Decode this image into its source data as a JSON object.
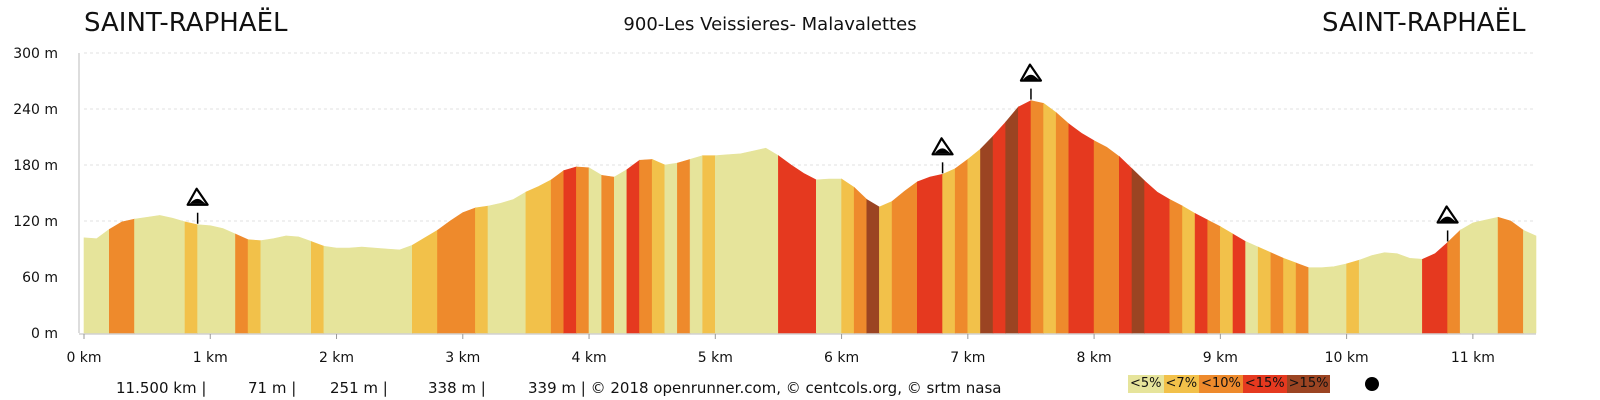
{
  "header": {
    "start_label": "SAINT-RAPHAËL",
    "end_label": "SAINT-RAPHAËL",
    "title": "900-Les Veissieres- Malavalettes"
  },
  "stats": {
    "distance": "11.500 km |",
    "min_elevation": "71 m |",
    "max_elevation": "251 m |",
    "ascent": "338 m |",
    "descent_credits": "339 m | © 2018 openrunner.com, © centcols.org, © srtm nasa"
  },
  "legend": [
    {
      "label": "<5%",
      "color": "#e6e49b"
    },
    {
      "label": "<7%",
      "color": "#f2c14a"
    },
    {
      "label": "<10%",
      "color": "#ee8a2c"
    },
    {
      "label": "<15%",
      "color": "#e5391f"
    },
    {
      "label": ">15%",
      "color": "#9b4422"
    }
  ],
  "chart_data": {
    "type": "area",
    "title": "900-Les Veissieres- Malavalettes",
    "xlabel": "",
    "ylabel": "",
    "x_unit": "km",
    "y_unit": "m",
    "xlim": [
      0,
      11.5
    ],
    "ylim": [
      0,
      300
    ],
    "x_ticks": [
      "0 km",
      "1 km",
      "2 km",
      "3 km",
      "4 km",
      "5 km",
      "6 km",
      "7 km",
      "8 km",
      "9 km",
      "10 km",
      "11 km"
    ],
    "y_ticks": [
      "0 m",
      "60 m",
      "120 m",
      "180 m",
      "240 m",
      "300 m"
    ],
    "grid": true,
    "profile": [
      {
        "x": 0.0,
        "y": 102
      },
      {
        "x": 0.1,
        "y": 101
      },
      {
        "x": 0.2,
        "y": 111
      },
      {
        "x": 0.3,
        "y": 119
      },
      {
        "x": 0.4,
        "y": 122
      },
      {
        "x": 0.5,
        "y": 124
      },
      {
        "x": 0.6,
        "y": 126
      },
      {
        "x": 0.7,
        "y": 123
      },
      {
        "x": 0.8,
        "y": 119
      },
      {
        "x": 0.9,
        "y": 116
      },
      {
        "x": 1.0,
        "y": 115
      },
      {
        "x": 1.1,
        "y": 112
      },
      {
        "x": 1.2,
        "y": 106
      },
      {
        "x": 1.3,
        "y": 100
      },
      {
        "x": 1.4,
        "y": 99
      },
      {
        "x": 1.5,
        "y": 101
      },
      {
        "x": 1.6,
        "y": 104
      },
      {
        "x": 1.7,
        "y": 103
      },
      {
        "x": 1.8,
        "y": 98
      },
      {
        "x": 1.9,
        "y": 93
      },
      {
        "x": 2.0,
        "y": 91
      },
      {
        "x": 2.1,
        "y": 91
      },
      {
        "x": 2.2,
        "y": 92
      },
      {
        "x": 2.3,
        "y": 91
      },
      {
        "x": 2.4,
        "y": 90
      },
      {
        "x": 2.5,
        "y": 89
      },
      {
        "x": 2.6,
        "y": 94
      },
      {
        "x": 2.7,
        "y": 102
      },
      {
        "x": 2.8,
        "y": 110
      },
      {
        "x": 2.9,
        "y": 120
      },
      {
        "x": 3.0,
        "y": 129
      },
      {
        "x": 3.1,
        "y": 134
      },
      {
        "x": 3.2,
        "y": 136
      },
      {
        "x": 3.3,
        "y": 139
      },
      {
        "x": 3.4,
        "y": 143
      },
      {
        "x": 3.5,
        "y": 151
      },
      {
        "x": 3.6,
        "y": 157
      },
      {
        "x": 3.7,
        "y": 164
      },
      {
        "x": 3.8,
        "y": 174
      },
      {
        "x": 3.9,
        "y": 178
      },
      {
        "x": 4.0,
        "y": 177
      },
      {
        "x": 4.1,
        "y": 169
      },
      {
        "x": 4.2,
        "y": 167
      },
      {
        "x": 4.3,
        "y": 175
      },
      {
        "x": 4.4,
        "y": 185
      },
      {
        "x": 4.5,
        "y": 186
      },
      {
        "x": 4.6,
        "y": 180
      },
      {
        "x": 4.7,
        "y": 182
      },
      {
        "x": 4.8,
        "y": 186
      },
      {
        "x": 4.9,
        "y": 190
      },
      {
        "x": 5.0,
        "y": 190
      },
      {
        "x": 5.1,
        "y": 191
      },
      {
        "x": 5.2,
        "y": 192
      },
      {
        "x": 5.3,
        "y": 195
      },
      {
        "x": 5.4,
        "y": 198
      },
      {
        "x": 5.5,
        "y": 190
      },
      {
        "x": 5.6,
        "y": 180
      },
      {
        "x": 5.7,
        "y": 171
      },
      {
        "x": 5.8,
        "y": 164
      },
      {
        "x": 5.9,
        "y": 165
      },
      {
        "x": 6.0,
        "y": 165
      },
      {
        "x": 6.1,
        "y": 156
      },
      {
        "x": 6.2,
        "y": 143
      },
      {
        "x": 6.3,
        "y": 135
      },
      {
        "x": 6.4,
        "y": 141
      },
      {
        "x": 6.5,
        "y": 152
      },
      {
        "x": 6.6,
        "y": 162
      },
      {
        "x": 6.7,
        "y": 167
      },
      {
        "x": 6.8,
        "y": 170
      },
      {
        "x": 6.9,
        "y": 176
      },
      {
        "x": 7.0,
        "y": 186
      },
      {
        "x": 7.1,
        "y": 197
      },
      {
        "x": 7.2,
        "y": 211
      },
      {
        "x": 7.3,
        "y": 226
      },
      {
        "x": 7.4,
        "y": 242
      },
      {
        "x": 7.5,
        "y": 249
      },
      {
        "x": 7.6,
        "y": 246
      },
      {
        "x": 7.7,
        "y": 236
      },
      {
        "x": 7.8,
        "y": 224
      },
      {
        "x": 7.9,
        "y": 214
      },
      {
        "x": 8.0,
        "y": 206
      },
      {
        "x": 8.1,
        "y": 199
      },
      {
        "x": 8.2,
        "y": 189
      },
      {
        "x": 8.3,
        "y": 176
      },
      {
        "x": 8.4,
        "y": 163
      },
      {
        "x": 8.5,
        "y": 151
      },
      {
        "x": 8.6,
        "y": 143
      },
      {
        "x": 8.7,
        "y": 136
      },
      {
        "x": 8.8,
        "y": 128
      },
      {
        "x": 8.9,
        "y": 121
      },
      {
        "x": 9.0,
        "y": 114
      },
      {
        "x": 9.1,
        "y": 106
      },
      {
        "x": 9.2,
        "y": 98
      },
      {
        "x": 9.3,
        "y": 92
      },
      {
        "x": 9.4,
        "y": 86
      },
      {
        "x": 9.5,
        "y": 80
      },
      {
        "x": 9.6,
        "y": 75
      },
      {
        "x": 9.7,
        "y": 70
      },
      {
        "x": 9.8,
        "y": 70
      },
      {
        "x": 9.9,
        "y": 71
      },
      {
        "x": 10.0,
        "y": 74
      },
      {
        "x": 10.1,
        "y": 78
      },
      {
        "x": 10.2,
        "y": 83
      },
      {
        "x": 10.3,
        "y": 86
      },
      {
        "x": 10.4,
        "y": 85
      },
      {
        "x": 10.5,
        "y": 80
      },
      {
        "x": 10.6,
        "y": 79
      },
      {
        "x": 10.7,
        "y": 85
      },
      {
        "x": 10.8,
        "y": 97
      },
      {
        "x": 10.9,
        "y": 110
      },
      {
        "x": 11.0,
        "y": 118
      },
      {
        "x": 11.1,
        "y": 121
      },
      {
        "x": 11.2,
        "y": 124
      },
      {
        "x": 11.3,
        "y": 120
      },
      {
        "x": 11.4,
        "y": 110
      },
      {
        "x": 11.5,
        "y": 104
      }
    ],
    "gradient_segments": [
      {
        "x0": 0.0,
        "x1": 0.2,
        "class": "<5%"
      },
      {
        "x0": 0.2,
        "x1": 0.4,
        "class": "<10%"
      },
      {
        "x0": 0.4,
        "x1": 0.8,
        "class": "<5%"
      },
      {
        "x0": 0.8,
        "x1": 0.9,
        "class": "<7%"
      },
      {
        "x0": 0.9,
        "x1": 1.2,
        "class": "<5%"
      },
      {
        "x0": 1.2,
        "x1": 1.3,
        "class": "<10%"
      },
      {
        "x0": 1.3,
        "x1": 1.4,
        "class": "<7%"
      },
      {
        "x0": 1.4,
        "x1": 1.8,
        "class": "<5%"
      },
      {
        "x0": 1.8,
        "x1": 1.9,
        "class": "<7%"
      },
      {
        "x0": 1.9,
        "x1": 2.6,
        "class": "<5%"
      },
      {
        "x0": 2.6,
        "x1": 2.8,
        "class": "<7%"
      },
      {
        "x0": 2.8,
        "x1": 3.1,
        "class": "<10%"
      },
      {
        "x0": 3.1,
        "x1": 3.2,
        "class": "<7%"
      },
      {
        "x0": 3.2,
        "x1": 3.5,
        "class": "<5%"
      },
      {
        "x0": 3.5,
        "x1": 3.7,
        "class": "<7%"
      },
      {
        "x0": 3.7,
        "x1": 3.8,
        "class": "<10%"
      },
      {
        "x0": 3.8,
        "x1": 3.9,
        "class": "<15%"
      },
      {
        "x0": 3.9,
        "x1": 4.0,
        "class": "<10%"
      },
      {
        "x0": 4.0,
        "x1": 4.1,
        "class": "<5%"
      },
      {
        "x0": 4.1,
        "x1": 4.2,
        "class": "<10%"
      },
      {
        "x0": 4.2,
        "x1": 4.3,
        "class": "<5%"
      },
      {
        "x0": 4.3,
        "x1": 4.4,
        "class": "<15%"
      },
      {
        "x0": 4.4,
        "x1": 4.5,
        "class": "<10%"
      },
      {
        "x0": 4.5,
        "x1": 4.6,
        "class": "<7%"
      },
      {
        "x0": 4.6,
        "x1": 4.7,
        "class": "<5%"
      },
      {
        "x0": 4.7,
        "x1": 4.8,
        "class": "<10%"
      },
      {
        "x0": 4.8,
        "x1": 4.9,
        "class": "<5%"
      },
      {
        "x0": 4.9,
        "x1": 5.0,
        "class": "<7%"
      },
      {
        "x0": 5.0,
        "x1": 5.5,
        "class": "<5%"
      },
      {
        "x0": 5.5,
        "x1": 5.8,
        "class": "<15%"
      },
      {
        "x0": 5.8,
        "x1": 6.0,
        "class": "<5%"
      },
      {
        "x0": 6.0,
        "x1": 6.1,
        "class": "<7%"
      },
      {
        "x0": 6.1,
        "x1": 6.2,
        "class": "<10%"
      },
      {
        "x0": 6.2,
        "x1": 6.3,
        "class": ">15%"
      },
      {
        "x0": 6.3,
        "x1": 6.4,
        "class": "<7%"
      },
      {
        "x0": 6.4,
        "x1": 6.6,
        "class": "<10%"
      },
      {
        "x0": 6.6,
        "x1": 6.8,
        "class": "<15%"
      },
      {
        "x0": 6.8,
        "x1": 6.9,
        "class": "<7%"
      },
      {
        "x0": 6.9,
        "x1": 7.0,
        "class": "<10%"
      },
      {
        "x0": 7.0,
        "x1": 7.1,
        "class": "<7%"
      },
      {
        "x0": 7.1,
        "x1": 7.2,
        "class": ">15%"
      },
      {
        "x0": 7.2,
        "x1": 7.3,
        "class": "<15%"
      },
      {
        "x0": 7.3,
        "x1": 7.4,
        "class": ">15%"
      },
      {
        "x0": 7.4,
        "x1": 7.5,
        "class": "<15%"
      },
      {
        "x0": 7.5,
        "x1": 7.6,
        "class": "<10%"
      },
      {
        "x0": 7.6,
        "x1": 7.7,
        "class": "<7%"
      },
      {
        "x0": 7.7,
        "x1": 7.8,
        "class": "<10%"
      },
      {
        "x0": 7.8,
        "x1": 8.0,
        "class": "<15%"
      },
      {
        "x0": 8.0,
        "x1": 8.2,
        "class": "<10%"
      },
      {
        "x0": 8.2,
        "x1": 8.3,
        "class": "<15%"
      },
      {
        "x0": 8.3,
        "x1": 8.4,
        "class": ">15%"
      },
      {
        "x0": 8.4,
        "x1": 8.6,
        "class": "<15%"
      },
      {
        "x0": 8.6,
        "x1": 8.7,
        "class": "<10%"
      },
      {
        "x0": 8.7,
        "x1": 8.8,
        "class": "<7%"
      },
      {
        "x0": 8.8,
        "x1": 8.9,
        "class": "<15%"
      },
      {
        "x0": 8.9,
        "x1": 9.0,
        "class": "<10%"
      },
      {
        "x0": 9.0,
        "x1": 9.1,
        "class": "<7%"
      },
      {
        "x0": 9.1,
        "x1": 9.2,
        "class": "<15%"
      },
      {
        "x0": 9.2,
        "x1": 9.3,
        "class": "<5%"
      },
      {
        "x0": 9.3,
        "x1": 9.4,
        "class": "<7%"
      },
      {
        "x0": 9.4,
        "x1": 9.5,
        "class": "<10%"
      },
      {
        "x0": 9.5,
        "x1": 9.6,
        "class": "<7%"
      },
      {
        "x0": 9.6,
        "x1": 9.7,
        "class": "<10%"
      },
      {
        "x0": 9.7,
        "x1": 10.0,
        "class": "<5%"
      },
      {
        "x0": 10.0,
        "x1": 10.1,
        "class": "<7%"
      },
      {
        "x0": 10.1,
        "x1": 10.6,
        "class": "<5%"
      },
      {
        "x0": 10.6,
        "x1": 10.8,
        "class": "<15%"
      },
      {
        "x0": 10.8,
        "x1": 10.9,
        "class": "<10%"
      },
      {
        "x0": 10.9,
        "x1": 11.2,
        "class": "<5%"
      },
      {
        "x0": 11.2,
        "x1": 11.4,
        "class": "<10%"
      },
      {
        "x0": 11.4,
        "x1": 11.5,
        "class": "<5%"
      }
    ],
    "summit_markers": [
      {
        "x": 0.9,
        "y": 116,
        "icon": "mountain-pass-icon"
      },
      {
        "x": 6.8,
        "y": 170,
        "icon": "mountain-pass-icon"
      },
      {
        "x": 7.5,
        "y": 249,
        "icon": "mountain-pass-icon"
      },
      {
        "x": 10.8,
        "y": 97,
        "icon": "mountain-pass-icon"
      }
    ]
  }
}
